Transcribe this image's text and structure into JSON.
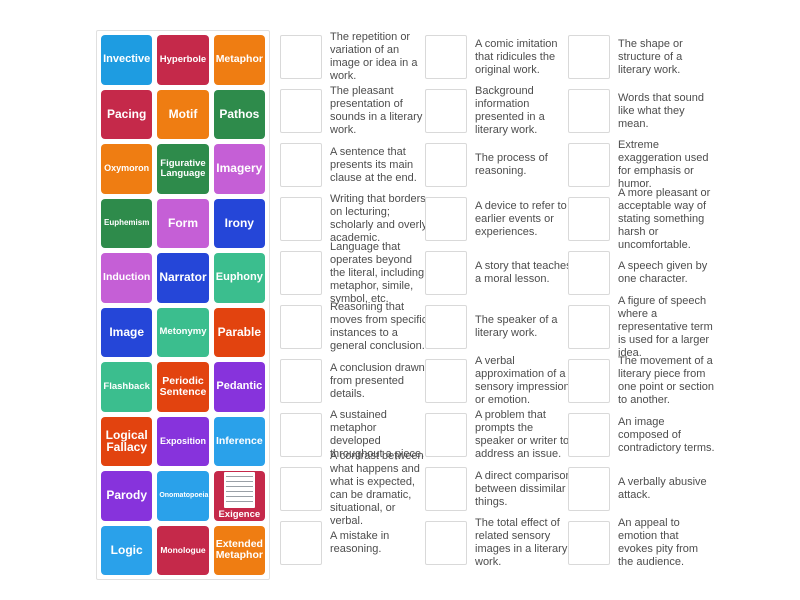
{
  "activity": {
    "kind": "match-up",
    "background_color": "#ffffff",
    "panel_border_color": "#e0e0e0",
    "drop_box_border_color": "#d9d9d9",
    "definition_text_color": "#4d4d4d"
  },
  "tiles": [
    {
      "label": "Invective",
      "color": "#1E9CE1"
    },
    {
      "label": "Hyperbole",
      "color": "#C5294A"
    },
    {
      "label": "Metaphor",
      "color": "#EF7D12"
    },
    {
      "label": "Pacing",
      "color": "#C5294A"
    },
    {
      "label": "Motif",
      "color": "#EF7D12"
    },
    {
      "label": "Pathos",
      "color": "#2E8B4B"
    },
    {
      "label": "Oxymoron",
      "color": "#EF7D12"
    },
    {
      "label": "Figurative Language",
      "color": "#2E8B4B"
    },
    {
      "label": "Imagery",
      "color": "#C55FD6"
    },
    {
      "label": "Euphemism",
      "color": "#2E8B4B"
    },
    {
      "label": "Form",
      "color": "#C55FD6"
    },
    {
      "label": "Irony",
      "color": "#2546D8"
    },
    {
      "label": "Induction",
      "color": "#C55FD6"
    },
    {
      "label": "Narrator",
      "color": "#2546D8"
    },
    {
      "label": "Euphony",
      "color": "#3BBE8E"
    },
    {
      "label": "Image",
      "color": "#2546D8"
    },
    {
      "label": "Metonymy",
      "color": "#3BBE8E"
    },
    {
      "label": "Parable",
      "color": "#E2430F"
    },
    {
      "label": "Flashback",
      "color": "#3BBE8E"
    },
    {
      "label": "Periodic Sentence",
      "color": "#E2430F"
    },
    {
      "label": "Pedantic",
      "color": "#8733DC"
    },
    {
      "label": "Logical Fallacy",
      "color": "#E2430F"
    },
    {
      "label": "Exposition",
      "color": "#8733DC"
    },
    {
      "label": "Inference",
      "color": "#2AA1EA"
    },
    {
      "label": "Parody",
      "color": "#8733DC"
    },
    {
      "label": "Onomatopoeia",
      "color": "#2AA1EA"
    },
    {
      "label": "Exigence",
      "color": "#C5294A",
      "image": "document-thumbnail"
    },
    {
      "label": "Logic",
      "color": "#2AA1EA"
    },
    {
      "label": "Monologue",
      "color": "#C5294A"
    },
    {
      "label": "Extended Metaphor",
      "color": "#EF7D12"
    }
  ],
  "definition_columns": [
    {
      "items": [
        "The repetition or variation of an image or idea in a work.",
        "The pleasant presentation of sounds in a literary work.",
        "A sentence that presents its main clause at the end.",
        "Writing that borders on lecturing; scholarly and overly academic.",
        "Language that operates beyond the literal, including metaphor, simile, symbol, etc.",
        "Reasoning that moves from specific instances to a general conclusion.",
        "A conclusion drawn from presented details.",
        "A sustained metaphor developed throughout a piece.",
        "A contrast between what happens and what is expected, can be dramatic, situational, or verbal.",
        "A mistake in reasoning."
      ]
    },
    {
      "items": [
        "A comic imitation that ridicules the original work.",
        "Background information presented in a literary work.",
        "The process of reasoning.",
        "A device to refer to earlier events or experiences.",
        "A story that teaches a moral lesson.",
        "The speaker of a literary work.",
        "A verbal approximation of a sensory impression or emotion.",
        "A problem that prompts the speaker or writer to address an issue.",
        "A direct comparison between dissimilar things.",
        "The total effect of related sensory images in a literary work."
      ]
    },
    {
      "items": [
        "The shape or structure of a literary work.",
        "Words that sound like what they mean.",
        "Extreme exaggeration used for emphasis or humor.",
        "A more pleasant or acceptable way of stating something harsh or uncomfortable.",
        "A speech given by one character.",
        "A figure of speech where a representative term is used for a larger idea.",
        "The movement of a literary piece from one point or section to another.",
        "An image composed of contradictory terms.",
        "A verbally abusive attack.",
        "An appeal to emotion that evokes pity from the audience."
      ]
    }
  ]
}
